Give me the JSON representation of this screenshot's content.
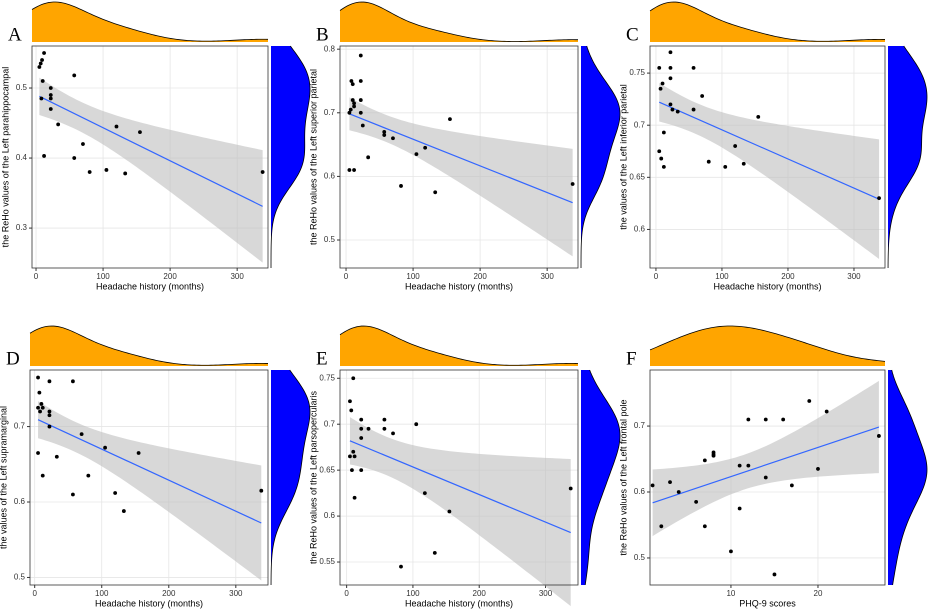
{
  "chart_data": [
    {
      "type": "scatter",
      "label": "A",
      "xlabel": "Headache history (months)",
      "ylabel": "the ReHo values of the Left parahippocampal",
      "x": [
        5,
        7,
        9,
        12,
        10,
        8,
        12,
        22,
        22,
        22,
        22,
        33,
        57,
        57,
        70,
        80,
        105,
        120,
        133,
        155,
        338
      ],
      "values": [
        0.53,
        0.535,
        0.54,
        0.55,
        0.51,
        0.485,
        0.403,
        0.5,
        0.49,
        0.485,
        0.47,
        0.448,
        0.518,
        0.4,
        0.42,
        0.38,
        0.383,
        0.445,
        0.378,
        0.437,
        0.38
      ],
      "xlim": [
        -6,
        346
      ],
      "xticks": [
        0,
        100,
        200,
        300
      ],
      "ylim": [
        0.243,
        0.56
      ],
      "yticks": [
        0.3,
        0.4,
        0.5
      ],
      "color": "#000000",
      "trend": "linear",
      "trend_color": "#3366ff",
      "band_color": "#bebebe",
      "top_color": "#ffa500",
      "right_color": "#0000ff",
      "grid": true
    },
    {
      "type": "scatter",
      "label": "B",
      "xlabel": "Headache history (months)",
      "ylabel": "the ReHo values of the Left superior parietal",
      "x": [
        5,
        7,
        5,
        12,
        8,
        10,
        10,
        12,
        12,
        22,
        22,
        22,
        22,
        25,
        33,
        57,
        57,
        70,
        82,
        105,
        118,
        133,
        155,
        338
      ],
      "values": [
        0.7,
        0.705,
        0.61,
        0.61,
        0.75,
        0.745,
        0.72,
        0.715,
        0.71,
        0.79,
        0.75,
        0.72,
        0.7,
        0.68,
        0.63,
        0.67,
        0.665,
        0.66,
        0.585,
        0.635,
        0.645,
        0.575,
        0.69,
        0.588
      ],
      "xlim": [
        -9,
        346
      ],
      "xticks": [
        0,
        100,
        200,
        300
      ],
      "ylim": [
        0.456,
        0.805
      ],
      "yticks": [
        0.5,
        0.6,
        0.7,
        0.8
      ],
      "color": "#000000",
      "trend": "linear",
      "trend_color": "#3366ff",
      "band_color": "#bebebe",
      "top_color": "#ffa500",
      "right_color": "#0000ff",
      "grid": true
    },
    {
      "type": "scatter",
      "label": "C",
      "xlabel": "Headache history (months)",
      "ylabel": "the values of the Left inferior parietal",
      "x": [
        5,
        7,
        5,
        8,
        10,
        12,
        12,
        22,
        22,
        22,
        22,
        25,
        33,
        57,
        57,
        70,
        80,
        105,
        120,
        133,
        155,
        338
      ],
      "values": [
        0.755,
        0.735,
        0.675,
        0.668,
        0.74,
        0.693,
        0.66,
        0.77,
        0.755,
        0.745,
        0.72,
        0.715,
        0.713,
        0.755,
        0.715,
        0.728,
        0.665,
        0.66,
        0.68,
        0.663,
        0.708,
        0.63
      ],
      "xlim": [
        -9,
        347
      ],
      "xticks": [
        0,
        100,
        200,
        300
      ],
      "ylim": [
        0.563,
        0.776
      ],
      "yticks": [
        0.6,
        0.65,
        0.7,
        0.75
      ],
      "color": "#000000",
      "trend": "linear",
      "trend_color": "#3366ff",
      "band_color": "#bebebe",
      "top_color": "#ffa500",
      "right_color": "#0000ff",
      "grid": true
    },
    {
      "type": "scatter",
      "label": "D",
      "xlabel": "Headache history (months)",
      "ylabel": "the values of the Left supramarginal",
      "x": [
        5,
        7,
        5,
        8,
        10,
        12,
        5,
        12,
        22,
        22,
        22,
        22,
        33,
        57,
        57,
        70,
        80,
        105,
        120,
        133,
        155,
        338
      ],
      "values": [
        0.765,
        0.745,
        0.725,
        0.72,
        0.73,
        0.725,
        0.665,
        0.635,
        0.76,
        0.72,
        0.715,
        0.7,
        0.66,
        0.76,
        0.61,
        0.69,
        0.635,
        0.672,
        0.612,
        0.588,
        0.665,
        0.615
      ],
      "xlim": [
        -7,
        348
      ],
      "xticks": [
        0,
        100,
        200,
        300
      ],
      "ylim": [
        0.49,
        0.775
      ],
      "yticks": [
        0.5,
        0.6,
        0.7
      ],
      "color": "#000000",
      "trend": "linear",
      "trend_color": "#3366ff",
      "band_color": "#bebebe",
      "top_color": "#ffa500",
      "right_color": "#0000ff",
      "grid": true
    },
    {
      "type": "scatter",
      "label": "E",
      "xlabel": "Headache history (months)",
      "ylabel": "the ReHo values of the Left parsopercularis",
      "x": [
        5,
        7,
        5,
        8,
        10,
        10,
        12,
        12,
        22,
        22,
        22,
        22,
        33,
        57,
        57,
        70,
        82,
        105,
        118,
        133,
        155,
        338
      ],
      "values": [
        0.725,
        0.715,
        0.665,
        0.65,
        0.75,
        0.67,
        0.665,
        0.62,
        0.705,
        0.695,
        0.685,
        0.65,
        0.695,
        0.705,
        0.695,
        0.69,
        0.545,
        0.7,
        0.625,
        0.56,
        0.605,
        0.63
      ],
      "xlim": [
        -10,
        349
      ],
      "xticks": [
        0,
        100,
        200,
        300
      ],
      "ylim": [
        0.525,
        0.759
      ],
      "yticks": [
        0.55,
        0.6,
        0.65,
        0.7,
        0.75
      ],
      "color": "#000000",
      "trend": "linear",
      "trend_color": "#3366ff",
      "band_color": "#bebebe",
      "top_color": "#ffa500",
      "right_color": "#0000ff",
      "grid": true
    },
    {
      "type": "scatter",
      "label": "F",
      "xlabel": "PHQ-9 scores",
      "ylabel": "the ReHo values of the Left frontal pole",
      "x": [
        1,
        2,
        3,
        4,
        6,
        7,
        7,
        8,
        8,
        8,
        10,
        11,
        11,
        12,
        12,
        14,
        14,
        15,
        16,
        17,
        19,
        20,
        21,
        27
      ],
      "values": [
        0.61,
        0.548,
        0.615,
        0.6,
        0.585,
        0.548,
        0.648,
        0.66,
        0.657,
        0.655,
        0.51,
        0.575,
        0.64,
        0.71,
        0.64,
        0.71,
        0.622,
        0.475,
        0.71,
        0.61,
        0.738,
        0.635,
        0.722,
        0.685
      ],
      "xlim": [
        0.7,
        27.7
      ],
      "xticks": [
        10,
        20
      ],
      "ylim": [
        0.459,
        0.785
      ],
      "yticks": [
        0.5,
        0.6,
        0.7
      ],
      "color": "#000000",
      "trend": "linear",
      "trend_color": "#3366ff",
      "band_color": "#bebebe",
      "top_color": "#ffa500",
      "right_color": "#0000ff",
      "grid": true
    }
  ]
}
